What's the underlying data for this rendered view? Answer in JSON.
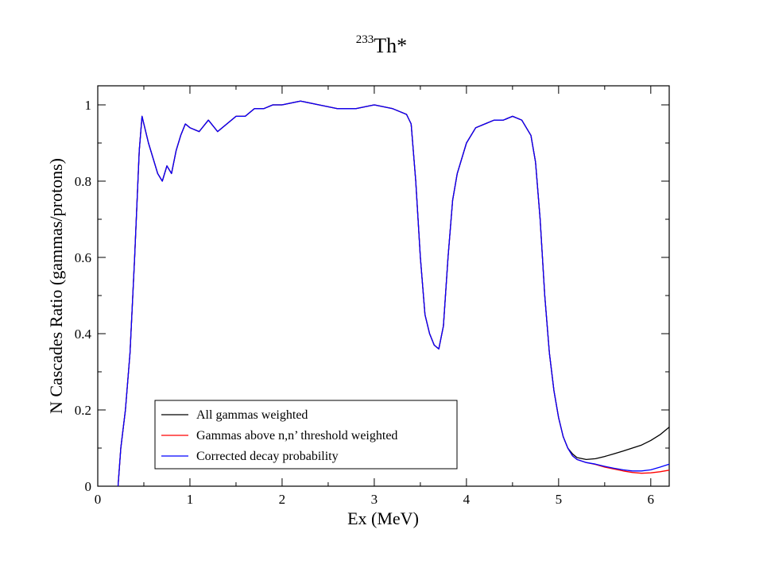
{
  "chart_data": {
    "type": "line",
    "title": "Th*",
    "title_superscript": "233",
    "xlabel": "Ex (MeV)",
    "ylabel": "N Cascades Ratio (gammas/protons)",
    "xlim": [
      0,
      6.2
    ],
    "ylim": [
      0,
      1.05
    ],
    "xticks": [
      0,
      1,
      2,
      3,
      4,
      5,
      6
    ],
    "yticks": [
      0,
      0.2,
      0.4,
      0.6,
      0.8,
      1
    ],
    "xtick_labels": [
      "0",
      "1",
      "2",
      "3",
      "4",
      "5",
      "6"
    ],
    "ytick_labels": [
      "0",
      "0.2",
      "0.4",
      "0.6",
      "0.8",
      "1"
    ],
    "grid": false,
    "legend_position": "bottom-left",
    "common_x": [
      0.22,
      0.25,
      0.3,
      0.35,
      0.4,
      0.45,
      0.48,
      0.5,
      0.55,
      0.6,
      0.65,
      0.7,
      0.75,
      0.8,
      0.85,
      0.9,
      0.95,
      1.0,
      1.1,
      1.2,
      1.3,
      1.4,
      1.5,
      1.6,
      1.7,
      1.8,
      1.9,
      2.0,
      2.2,
      2.4,
      2.6,
      2.8,
      3.0,
      3.2,
      3.35,
      3.4,
      3.45,
      3.5,
      3.55,
      3.6,
      3.65,
      3.7,
      3.75,
      3.8,
      3.85,
      3.9,
      4.0,
      4.1,
      4.2,
      4.3,
      4.4,
      4.5,
      4.6,
      4.7,
      4.75,
      4.8,
      4.85,
      4.9,
      4.95,
      5.0,
      5.05,
      5.1
    ],
    "common_y": [
      0.0,
      0.1,
      0.2,
      0.35,
      0.6,
      0.88,
      0.97,
      0.95,
      0.9,
      0.86,
      0.82,
      0.8,
      0.84,
      0.82,
      0.88,
      0.92,
      0.95,
      0.94,
      0.93,
      0.96,
      0.93,
      0.95,
      0.97,
      0.97,
      0.99,
      0.99,
      1.0,
      1.0,
      1.01,
      1.0,
      0.99,
      0.99,
      1.0,
      0.99,
      0.975,
      0.95,
      0.8,
      0.6,
      0.45,
      0.4,
      0.37,
      0.36,
      0.42,
      0.6,
      0.75,
      0.82,
      0.9,
      0.94,
      0.95,
      0.96,
      0.96,
      0.97,
      0.96,
      0.92,
      0.85,
      0.7,
      0.5,
      0.35,
      0.25,
      0.18,
      0.13,
      0.1
    ],
    "series": [
      {
        "name": "All gammas weighted",
        "color": "#000000",
        "x": [
          5.15,
          5.2,
          5.3,
          5.4,
          5.5,
          5.6,
          5.7,
          5.8,
          5.9,
          6.0,
          6.1,
          6.2
        ],
        "y": [
          0.085,
          0.075,
          0.07,
          0.072,
          0.078,
          0.085,
          0.092,
          0.1,
          0.108,
          0.12,
          0.135,
          0.155
        ]
      },
      {
        "name": "Gammas above n,n’ threshold weighted",
        "color": "#ff0000",
        "x": [
          5.15,
          5.2,
          5.3,
          5.4,
          5.5,
          5.6,
          5.7,
          5.8,
          5.9,
          6.0,
          6.1,
          6.2
        ],
        "y": [
          0.08,
          0.07,
          0.062,
          0.057,
          0.05,
          0.045,
          0.04,
          0.036,
          0.034,
          0.035,
          0.038,
          0.042
        ]
      },
      {
        "name": "Corrected decay probability",
        "color": "#0000ff",
        "x": [
          5.15,
          5.2,
          5.3,
          5.4,
          5.5,
          5.6,
          5.7,
          5.8,
          5.9,
          6.0,
          6.1,
          6.2
        ],
        "y": [
          0.08,
          0.07,
          0.062,
          0.058,
          0.052,
          0.047,
          0.043,
          0.04,
          0.04,
          0.043,
          0.05,
          0.058
        ]
      }
    ]
  }
}
